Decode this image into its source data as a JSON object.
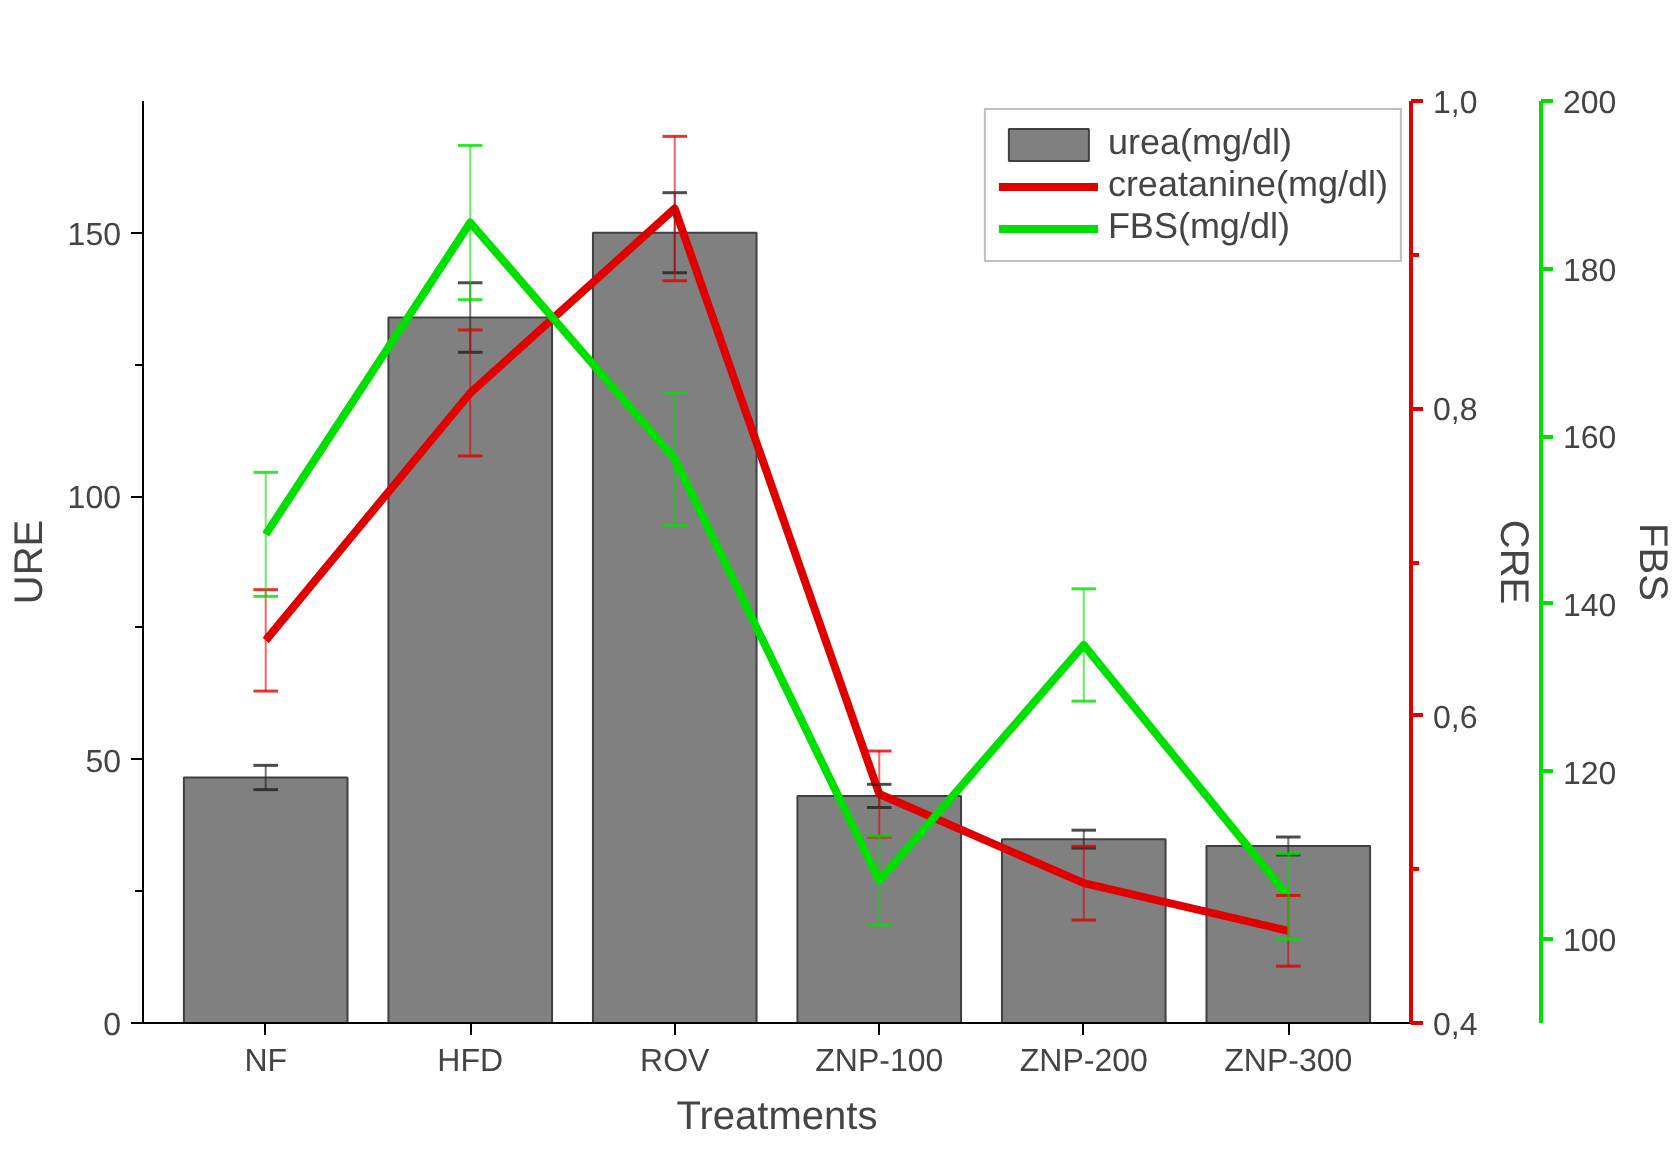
{
  "chart_data": {
    "type": "bar",
    "xlabel": "Treatments",
    "ylabel": "URE",
    "y2label": "CRE",
    "y3label": "FBS",
    "categories": [
      "NF",
      "HFD",
      "ROV",
      "ZNP-100",
      "ZNP-200",
      "ZNP-300"
    ],
    "series": [
      {
        "name": "urea(mg/dl)",
        "color": "#808080",
        "values": [
          46.6,
          133.9,
          150,
          43.1,
          34.9,
          33.6
        ],
        "errors": [
          2.3,
          6.6,
          7.6,
          2.2,
          1.7,
          1.7
        ]
      },
      {
        "name": "creatanine(mg/dl)",
        "type": "line",
        "axis": "y2",
        "color": "#e00000",
        "values": [
          0.649,
          0.81,
          0.93,
          0.549,
          0.491,
          0.46
        ],
        "errors": [
          0.033,
          0.041,
          0.047,
          0.028,
          0.024,
          0.023
        ]
      },
      {
        "name": "FBS(mg/dl)",
        "type": "line",
        "axis": "y3",
        "color": "#00e000",
        "values": [
          148.3,
          185.5,
          157.3,
          107.0,
          135.1,
          105.1
        ],
        "errors": [
          7.4,
          9.2,
          7.9,
          5.3,
          6.7,
          5.1
        ]
      }
    ],
    "ylim": [
      0,
      175
    ],
    "yticks": [
      0,
      {
        "value": 25,
        "label": null
      },
      50,
      {
        "value": 75,
        "label": null
      },
      100,
      {
        "value": 125,
        "label": null
      },
      150
    ],
    "y2lim": [
      0.4,
      1.0
    ],
    "y2ticks": [
      {
        "value": 0.4,
        "label": "0,4"
      },
      {
        "value": 0.5,
        "label": null
      },
      {
        "value": 0.6,
        "label": "0,6"
      },
      {
        "value": 0.7,
        "label": null
      },
      {
        "value": 0.8,
        "label": "0,8"
      },
      {
        "value": 0.9,
        "label": null
      },
      {
        "value": 1.0,
        "label": "1,0"
      }
    ],
    "y3lim": [
      90,
      200
    ],
    "y3ticks": [
      100,
      120,
      140,
      160,
      180,
      200
    ],
    "grid": false,
    "legend": "top right"
  }
}
